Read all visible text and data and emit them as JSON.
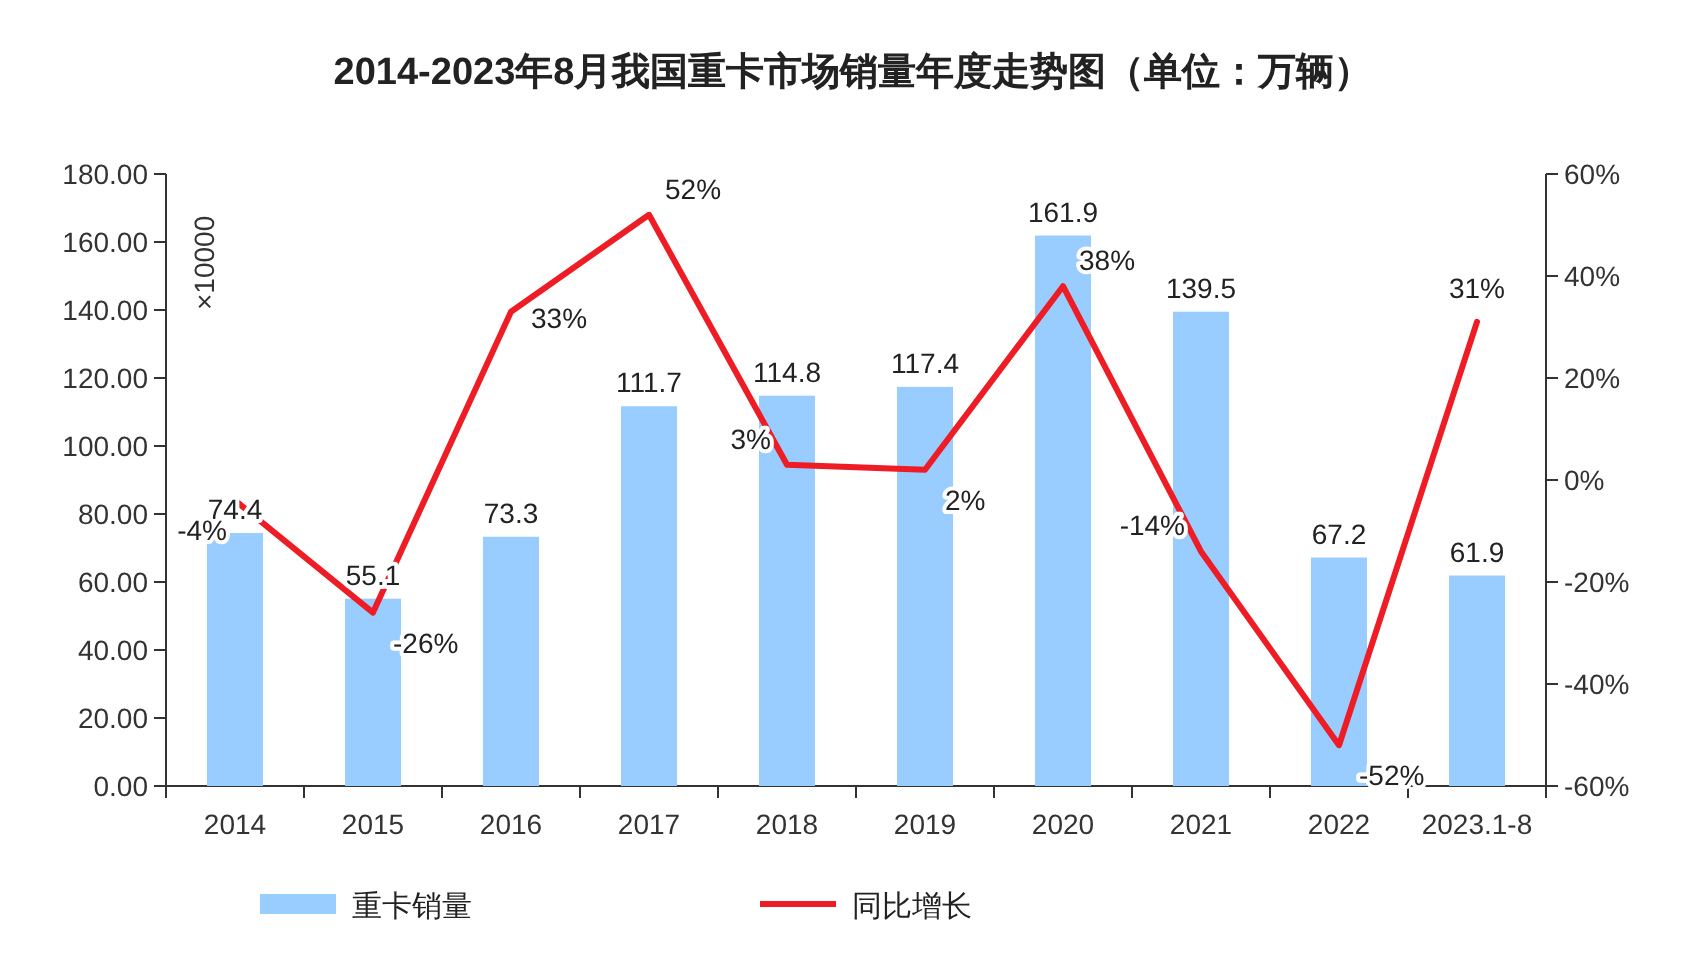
{
  "chart_data": {
    "type": "bar",
    "title": "2014-2023年8月我国重卡市场销量年度走势图（单位：万辆）",
    "categories": [
      "2014",
      "2015",
      "2016",
      "2017",
      "2018",
      "2019",
      "2020",
      "2021",
      "2022",
      "2023.1-8"
    ],
    "series": [
      {
        "name": "重卡销量",
        "color": "#99ccff",
        "values": [
          74.4,
          55.1,
          73.3,
          111.7,
          114.8,
          117.4,
          161.9,
          139.5,
          67.2,
          61.9
        ]
      },
      {
        "name": "同比增长",
        "type": "line",
        "axis": "y2",
        "color": "#ee1c25",
        "values": [
          -4,
          -26,
          33,
          52,
          3,
          2,
          38,
          -14,
          -52,
          31
        ],
        "value_labels": [
          "-4%",
          "-26%",
          "33%",
          "52%",
          "3%",
          "2%",
          "38%",
          "-14%",
          "-52%",
          "31%"
        ]
      }
    ],
    "data_labels": true,
    "annotations": [
      "×10000"
    ],
    "ylim": [
      0,
      180
    ],
    "yticks": [
      {
        "value": 0,
        "label": "0.00"
      },
      {
        "value": 20,
        "label": "20.00"
      },
      {
        "value": 40,
        "label": "40.00"
      },
      {
        "value": 60,
        "label": "60.00"
      },
      {
        "value": 80,
        "label": "80.00"
      },
      {
        "value": 100,
        "label": "100.00"
      },
      {
        "value": 120,
        "label": "120.00"
      },
      {
        "value": 140,
        "label": "140.00"
      },
      {
        "value": 160,
        "label": "160.00"
      },
      {
        "value": 180,
        "label": "180.00"
      }
    ],
    "y2lim": [
      -60,
      60
    ],
    "y2ticks": [
      {
        "value": -60,
        "label": "-60%"
      },
      {
        "value": -40,
        "label": "-40%"
      },
      {
        "value": -20,
        "label": "-20%"
      },
      {
        "value": 0,
        "label": "0%"
      },
      {
        "value": 20,
        "label": "20%"
      },
      {
        "value": 40,
        "label": "40%"
      },
      {
        "value": 60,
        "label": "60%"
      }
    ],
    "grid": false,
    "legend": "bottom"
  }
}
